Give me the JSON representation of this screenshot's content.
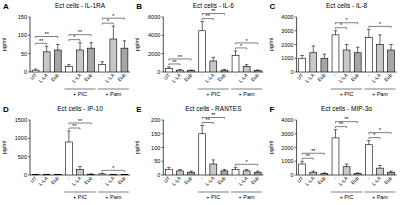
{
  "chart_data": [
    {
      "type": "bar",
      "panel_label": "A",
      "title": "Ect cells - IL-1RA",
      "ylabel": "pg/ml",
      "categories": [
        "UT",
        "L-LA",
        "Eub",
        "-",
        "L-LA",
        "Eub",
        "-",
        "L-LA",
        "Eub"
      ],
      "values": [
        5,
        55,
        60,
        15,
        60,
        65,
        20,
        90,
        65
      ],
      "errors": [
        3,
        15,
        15,
        5,
        20,
        15,
        8,
        35,
        20
      ],
      "colors": [
        "#ffffff",
        "#c8c8c8",
        "#a6a6a6",
        "#ffffff",
        "#c8c8c8",
        "#a6a6a6",
        "#ffffff",
        "#c8c8c8",
        "#a6a6a6"
      ],
      "ylim": [
        0,
        150
      ],
      "yticks": [
        0,
        50,
        100,
        150
      ],
      "groups": [
        {
          "label": "+ PIC",
          "from": 3,
          "to": 5
        },
        {
          "label": "+ Pam",
          "from": 6,
          "to": 8
        }
      ],
      "annotations": [
        {
          "label": "**",
          "from": 0,
          "to": 1
        },
        {
          "label": "**",
          "from": 0,
          "to": 2
        },
        {
          "label": "*",
          "from": 3,
          "to": 4
        },
        {
          "label": "**",
          "from": 3,
          "to": 5
        },
        {
          "label": "*",
          "from": 6,
          "to": 7
        },
        {
          "label": "*",
          "from": 6,
          "to": 8
        }
      ]
    },
    {
      "type": "bar",
      "panel_label": "B",
      "title": "Ect cells - IL-6",
      "ylabel": "pg/ml",
      "categories": [
        "UT",
        "L-LA",
        "Eub",
        "-",
        "L-LA",
        "Eub",
        "-",
        "L-LA",
        "Eub"
      ],
      "values": [
        400,
        200,
        150,
        4500,
        1200,
        200,
        1800,
        600,
        150
      ],
      "errors": [
        150,
        80,
        60,
        1000,
        400,
        80,
        500,
        200,
        60
      ],
      "colors": [
        "#ffffff",
        "#c8c8c8",
        "#a6a6a6",
        "#ffffff",
        "#c8c8c8",
        "#a6a6a6",
        "#ffffff",
        "#c8c8c8",
        "#a6a6a6"
      ],
      "ylim": [
        0,
        6000
      ],
      "yticks": [
        0,
        2000,
        4000,
        6000
      ],
      "groups": [
        {
          "label": "+ PIC",
          "from": 3,
          "to": 5
        },
        {
          "label": "+ Pam",
          "from": 6,
          "to": 8
        }
      ],
      "annotations": [
        {
          "label": "**",
          "from": 0,
          "to": 1
        },
        {
          "label": "**",
          "from": 0,
          "to": 2
        },
        {
          "label": "**",
          "from": 3,
          "to": 4
        },
        {
          "label": "**",
          "from": 3,
          "to": 5
        },
        {
          "label": "*",
          "from": 6,
          "to": 7
        },
        {
          "label": "*",
          "from": 6,
          "to": 8
        }
      ]
    },
    {
      "type": "bar",
      "panel_label": "C",
      "title": "Ect cells - IL-8",
      "ylabel": "pg/ml",
      "categories": [
        "UT",
        "L-LA",
        "Eub",
        "-",
        "L-LA",
        "Eub",
        "-",
        "L-LA",
        "Eub"
      ],
      "values": [
        1000,
        1400,
        1000,
        2700,
        1600,
        1400,
        2500,
        2000,
        1600
      ],
      "errors": [
        200,
        500,
        300,
        300,
        400,
        400,
        600,
        700,
        400
      ],
      "colors": [
        "#ffffff",
        "#c8c8c8",
        "#a6a6a6",
        "#ffffff",
        "#c8c8c8",
        "#a6a6a6",
        "#ffffff",
        "#c8c8c8",
        "#a6a6a6"
      ],
      "ylim": [
        0,
        4000
      ],
      "yticks": [
        0,
        1000,
        2000,
        3000,
        4000
      ],
      "groups": [
        {
          "label": "+ PIC",
          "from": 3,
          "to": 5
        },
        {
          "label": "+ Pam",
          "from": 6,
          "to": 8
        }
      ],
      "annotations": [
        {
          "label": "*",
          "from": 3,
          "to": 4
        },
        {
          "label": "*",
          "from": 3,
          "to": 5
        },
        {
          "label": "*",
          "from": 6,
          "to": 8
        }
      ]
    },
    {
      "type": "bar",
      "panel_label": "D",
      "title": "Ect cells - IP-10",
      "ylabel": "pg/ml",
      "categories": [
        "UT",
        "L-LA",
        "Eub",
        "-",
        "L-LA",
        "Eub",
        "-",
        "L-LA",
        "Eub"
      ],
      "values": [
        10,
        10,
        10,
        900,
        150,
        20,
        30,
        10,
        10
      ],
      "errors": [
        5,
        5,
        5,
        300,
        80,
        10,
        15,
        5,
        5
      ],
      "colors": [
        "#ffffff",
        "#c8c8c8",
        "#a6a6a6",
        "#ffffff",
        "#c8c8c8",
        "#a6a6a6",
        "#ffffff",
        "#c8c8c8",
        "#a6a6a6"
      ],
      "ylim": [
        0,
        1500
      ],
      "yticks": [
        0,
        500,
        1000,
        1500
      ],
      "groups": [
        {
          "label": "+ PIC",
          "from": 3,
          "to": 5
        },
        {
          "label": "+ Pam",
          "from": 6,
          "to": 8
        }
      ],
      "annotations": [
        {
          "label": "**",
          "from": 3,
          "to": 4
        },
        {
          "label": "**",
          "from": 3,
          "to": 5
        },
        {
          "label": "*",
          "from": 6,
          "to": 8
        }
      ]
    },
    {
      "type": "bar",
      "panel_label": "E",
      "title": "Ect cells - RANTES",
      "ylabel": "pg/ml",
      "categories": [
        "UT",
        "L-LA",
        "Eub",
        "-",
        "L-LA",
        "Eub",
        "-",
        "L-LA",
        "Eub"
      ],
      "values": [
        20,
        15,
        10,
        150,
        40,
        15,
        20,
        15,
        10
      ],
      "errors": [
        8,
        5,
        4,
        30,
        15,
        5,
        8,
        5,
        4
      ],
      "colors": [
        "#ffffff",
        "#c8c8c8",
        "#a6a6a6",
        "#ffffff",
        "#c8c8c8",
        "#a6a6a6",
        "#ffffff",
        "#c8c8c8",
        "#a6a6a6"
      ],
      "ylim": [
        0,
        200
      ],
      "yticks": [
        0,
        50,
        100,
        150,
        200
      ],
      "groups": [
        {
          "label": "+ PIC",
          "from": 3,
          "to": 5
        },
        {
          "label": "+ Pam",
          "from": 6,
          "to": 8
        }
      ],
      "annotations": [
        {
          "label": "**",
          "from": 3,
          "to": 4
        },
        {
          "label": "**",
          "from": 3,
          "to": 5
        },
        {
          "label": "*",
          "from": 6,
          "to": 8
        }
      ]
    },
    {
      "type": "bar",
      "panel_label": "F",
      "title": "Ect cells - MIP-3α",
      "ylabel": "pg/ml",
      "categories": [
        "UT",
        "L-LA",
        "Eub",
        "-",
        "L-LA",
        "Eub",
        "-",
        "L-LA",
        "Eub"
      ],
      "values": [
        800,
        200,
        100,
        2700,
        600,
        100,
        2200,
        500,
        200
      ],
      "errors": [
        200,
        80,
        50,
        600,
        200,
        50,
        300,
        200,
        80
      ],
      "colors": [
        "#ffffff",
        "#c8c8c8",
        "#a6a6a6",
        "#ffffff",
        "#c8c8c8",
        "#a6a6a6",
        "#ffffff",
        "#c8c8c8",
        "#a6a6a6"
      ],
      "ylim": [
        0,
        4000
      ],
      "yticks": [
        0,
        1000,
        2000,
        3000,
        4000
      ],
      "groups": [
        {
          "label": "+ PIC",
          "from": 3,
          "to": 5
        },
        {
          "label": "+ Pam",
          "from": 6,
          "to": 8
        }
      ],
      "annotations": [
        {
          "label": "**",
          "from": 0,
          "to": 1
        },
        {
          "label": "**",
          "from": 0,
          "to": 2
        },
        {
          "label": "**",
          "from": 3,
          "to": 4
        },
        {
          "label": "**",
          "from": 3,
          "to": 5
        },
        {
          "label": "*",
          "from": 6,
          "to": 7
        },
        {
          "label": "*",
          "from": 6,
          "to": 8
        }
      ]
    }
  ]
}
